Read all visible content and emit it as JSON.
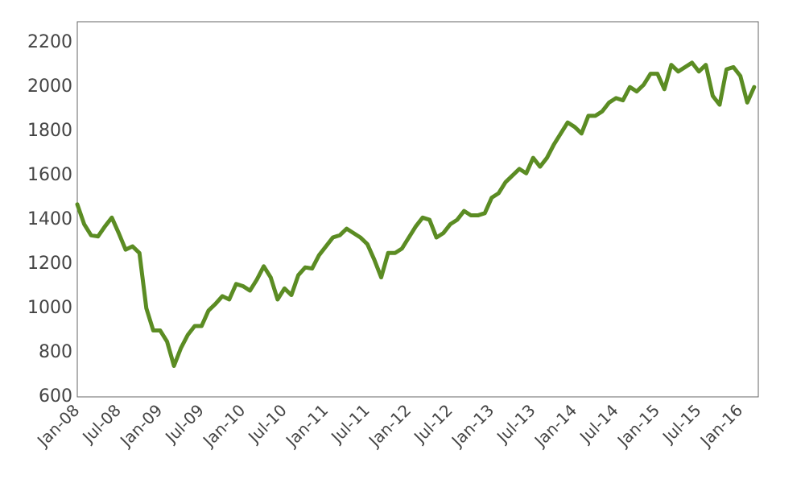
{
  "chart_data": {
    "type": "line",
    "categories": [
      "Jan-08",
      null,
      null,
      null,
      null,
      null,
      "Jul-08",
      null,
      null,
      null,
      null,
      null,
      "Jan-09",
      null,
      null,
      null,
      null,
      null,
      "Jul-09",
      null,
      null,
      null,
      null,
      null,
      "Jan-10",
      null,
      null,
      null,
      null,
      null,
      "Jul-10",
      null,
      null,
      null,
      null,
      null,
      "Jan-11",
      null,
      null,
      null,
      null,
      null,
      "Jul-11",
      null,
      null,
      null,
      null,
      null,
      "Jan-12",
      null,
      null,
      null,
      null,
      null,
      "Jul-12",
      null,
      null,
      null,
      null,
      null,
      "Jan-13",
      null,
      null,
      null,
      null,
      null,
      "Jul-13",
      null,
      null,
      null,
      null,
      null,
      "Jan-14",
      null,
      null,
      null,
      null,
      null,
      "Jul-14",
      null,
      null,
      null,
      null,
      null,
      "Jan-15",
      null,
      null,
      null,
      null,
      null,
      "Jul-15",
      null,
      null,
      null,
      null,
      null,
      "Jan-16",
      null,
      null
    ],
    "values": [
      1470,
      1380,
      1330,
      1325,
      1370,
      1410,
      1340,
      1265,
      1280,
      1250,
      1000,
      900,
      900,
      850,
      740,
      820,
      880,
      920,
      920,
      990,
      1020,
      1055,
      1040,
      1110,
      1100,
      1080,
      1130,
      1190,
      1140,
      1040,
      1090,
      1060,
      1150,
      1185,
      1180,
      1240,
      1280,
      1320,
      1330,
      1360,
      1340,
      1320,
      1290,
      1220,
      1140,
      1250,
      1250,
      1270,
      1320,
      1370,
      1410,
      1400,
      1320,
      1340,
      1380,
      1400,
      1440,
      1420,
      1420,
      1430,
      1500,
      1520,
      1570,
      1600,
      1630,
      1610,
      1680,
      1640,
      1680,
      1740,
      1790,
      1840,
      1820,
      1790,
      1870,
      1870,
      1890,
      1930,
      1950,
      1940,
      2000,
      1980,
      2010,
      2060,
      2060,
      1990,
      2100,
      2070,
      2090,
      2110,
      2070,
      2100,
      1960,
      1920,
      2080,
      2090,
      2050,
      1930,
      2000
    ],
    "color": "#5b8c23",
    "ylim": [
      600,
      2295
    ],
    "yticks": [
      600,
      800,
      1000,
      1200,
      1400,
      1600,
      1800,
      2000,
      2200
    ],
    "grid": false
  }
}
